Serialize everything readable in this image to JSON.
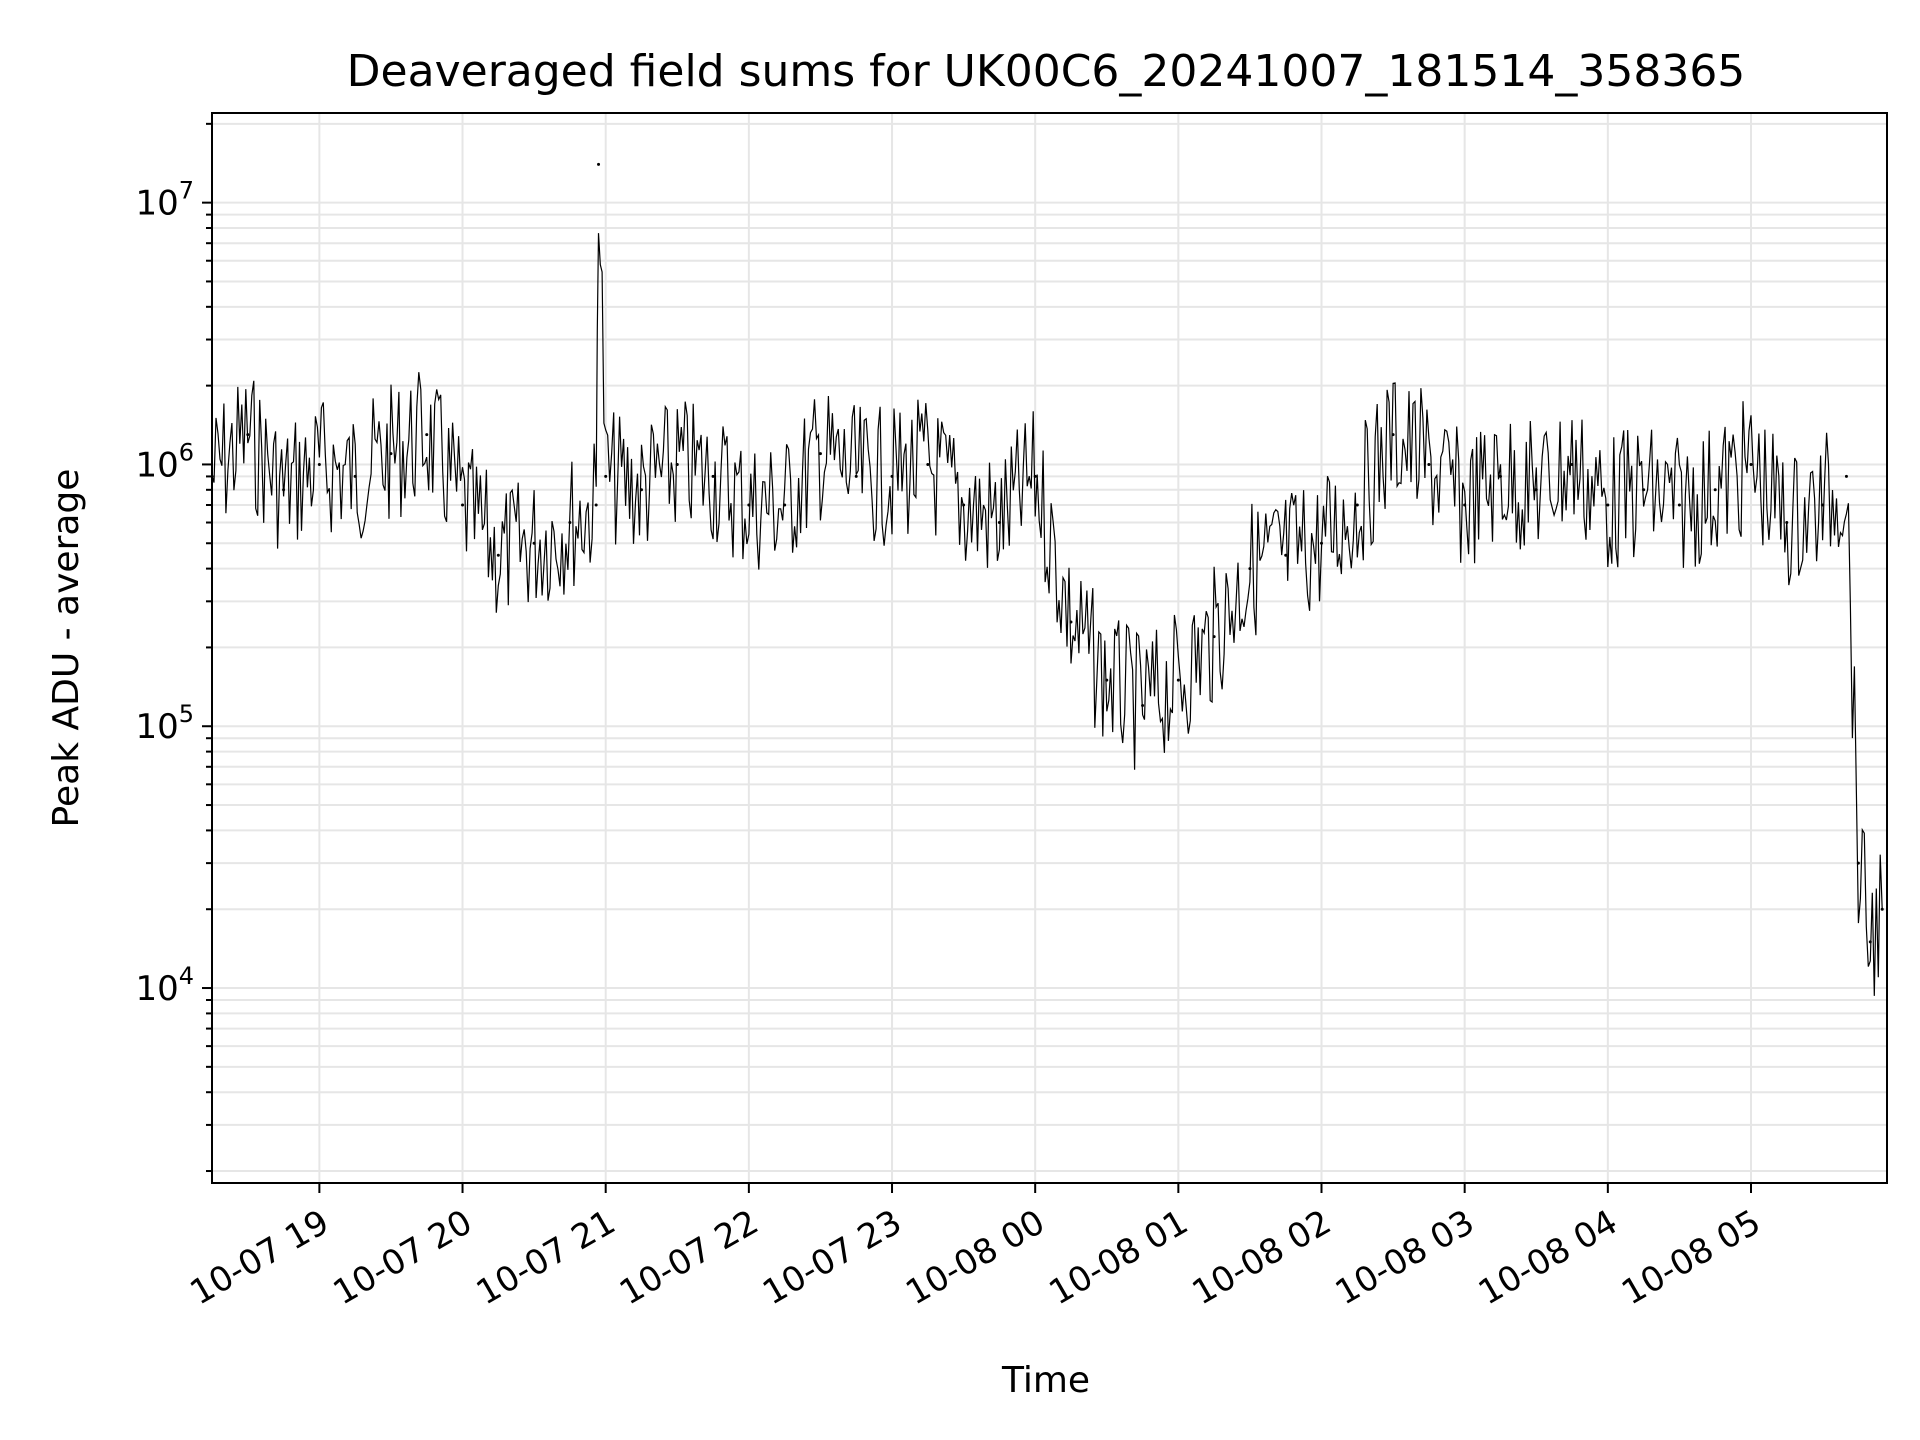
{
  "chart_data": {
    "type": "line",
    "title": "Deaveraged field sums for UK00C6_20241007_181514_358365",
    "xlabel": "Time",
    "ylabel": "Peak ADU - average",
    "yscale": "log",
    "grid": true,
    "legend": "none",
    "line_color": "#000000",
    "grid_color": "#e6e6e6",
    "xlim": [
      "2024-10-07 18:15",
      "2024-10-08 05:57"
    ],
    "ylim": [
      1800,
      22000000
    ],
    "x_ticks": [
      "10-07 19",
      "10-07 20",
      "10-07 21",
      "10-07 22",
      "10-07 23",
      "10-08 00",
      "10-08 01",
      "10-08 02",
      "10-08 03",
      "10-08 04",
      "10-08 05"
    ],
    "y_ticks": [
      {
        "base": "10",
        "exp": "4",
        "value": 10000
      },
      {
        "base": "10",
        "exp": "5",
        "value": 100000
      },
      {
        "base": "10",
        "exp": "6",
        "value": 1000000
      },
      {
        "base": "10",
        "exp": "7",
        "value": 10000000
      }
    ],
    "series": [
      {
        "x": [
          "2024-10-07 18:15",
          "2024-10-07 18:30",
          "2024-10-07 18:45",
          "2024-10-07 19:00",
          "2024-10-07 19:15",
          "2024-10-07 19:30",
          "2024-10-07 19:45",
          "2024-10-07 20:00",
          "2024-10-07 20:15",
          "2024-10-07 20:30",
          "2024-10-07 20:45",
          "2024-10-07 20:56",
          "2024-10-07 20:57",
          "2024-10-07 21:00",
          "2024-10-07 21:15",
          "2024-10-07 21:30",
          "2024-10-07 21:45",
          "2024-10-07 22:00",
          "2024-10-07 22:15",
          "2024-10-07 22:30",
          "2024-10-07 22:45",
          "2024-10-07 23:00",
          "2024-10-07 23:15",
          "2024-10-07 23:30",
          "2024-10-07 23:45",
          "2024-10-08 00:00",
          "2024-10-08 00:15",
          "2024-10-08 00:30",
          "2024-10-08 00:45",
          "2024-10-08 01:00",
          "2024-10-08 01:15",
          "2024-10-08 01:30",
          "2024-10-08 01:45",
          "2024-10-08 02:00",
          "2024-10-08 02:15",
          "2024-10-08 02:30",
          "2024-10-08 02:45",
          "2024-10-08 03:00",
          "2024-10-08 03:15",
          "2024-10-08 03:30",
          "2024-10-08 03:45",
          "2024-10-08 04:00",
          "2024-10-08 04:15",
          "2024-10-08 04:30",
          "2024-10-08 04:45",
          "2024-10-08 05:00",
          "2024-10-08 05:15",
          "2024-10-08 05:30",
          "2024-10-08 05:40",
          "2024-10-08 05:45",
          "2024-10-08 05:50",
          "2024-10-08 05:55"
        ],
        "y": [
          900000,
          1300000,
          800000,
          1000000,
          900000,
          1100000,
          1300000,
          700000,
          450000,
          500000,
          600000,
          700000,
          14000000,
          900000,
          800000,
          1000000,
          900000,
          700000,
          700000,
          1100000,
          900000,
          900000,
          1000000,
          700000,
          600000,
          900000,
          250000,
          150000,
          120000,
          150000,
          220000,
          400000,
          450000,
          500000,
          700000,
          1300000,
          1000000,
          700000,
          900000,
          800000,
          1000000,
          700000,
          800000,
          700000,
          800000,
          1000000,
          600000,
          700000,
          900000,
          30000,
          15000,
          20000
        ]
      }
    ]
  }
}
